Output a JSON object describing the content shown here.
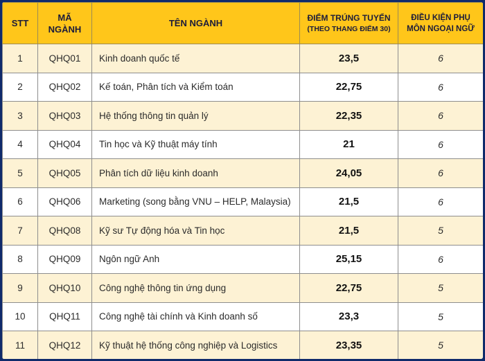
{
  "header": {
    "stt": "STT",
    "code_line1": "MÃ",
    "code_line2": "NGÀNH",
    "name": "TÊN NGÀNH",
    "score_line1": "ĐIỂM TRÚNG TUYỂN",
    "score_line2": "(THEO THANG ĐIỂM 30)",
    "lang_line1": "ĐIỀU KIỆN PHỤ",
    "lang_line2": "MÔN NGOẠI NGỮ"
  },
  "rows": [
    {
      "stt": "1",
      "code": "QHQ01",
      "name": "Kinh doanh quốc tế",
      "score": "23,5",
      "lang": "6"
    },
    {
      "stt": "2",
      "code": "QHQ02",
      "name": "Kế toán, Phân tích và Kiểm toán",
      "score": "22,75",
      "lang": "6"
    },
    {
      "stt": "3",
      "code": "QHQ03",
      "name": "Hệ thống thông tin quản lý",
      "score": "22,35",
      "lang": "6"
    },
    {
      "stt": "4",
      "code": "QHQ04",
      "name": "Tin học và Kỹ thuật máy tính",
      "score": "21",
      "lang": "6"
    },
    {
      "stt": "5",
      "code": "QHQ05",
      "name": "Phân tích dữ liệu kinh doanh",
      "score": "24,05",
      "lang": "6"
    },
    {
      "stt": "6",
      "code": "QHQ06",
      "name": "Marketing (song bằng VNU – HELP, Malaysia)",
      "score": "21,5",
      "lang": "6"
    },
    {
      "stt": "7",
      "code": "QHQ08",
      "name": "Kỹ sư Tự động hóa và Tin học",
      "score": "21,5",
      "lang": "5"
    },
    {
      "stt": "8",
      "code": "QHQ09",
      "name": "Ngôn ngữ Anh",
      "score": "25,15",
      "lang": "6"
    },
    {
      "stt": "9",
      "code": "QHQ10",
      "name": "Công nghệ thông tin ứng dụng",
      "score": "22,75",
      "lang": "5"
    },
    {
      "stt": "10",
      "code": "QHQ11",
      "name": "Công nghệ tài chính và Kinh doanh số",
      "score": "23,3",
      "lang": "5"
    },
    {
      "stt": "11",
      "code": "QHQ12",
      "name": "Kỹ thuật hệ thống công nghiệp và Logistics",
      "score": "23,35",
      "lang": "5"
    }
  ],
  "colors": {
    "header_bg": "#ffc61a",
    "row_alt_bg": "#fdf2d4",
    "frame_bg": "#0f2a6b"
  }
}
